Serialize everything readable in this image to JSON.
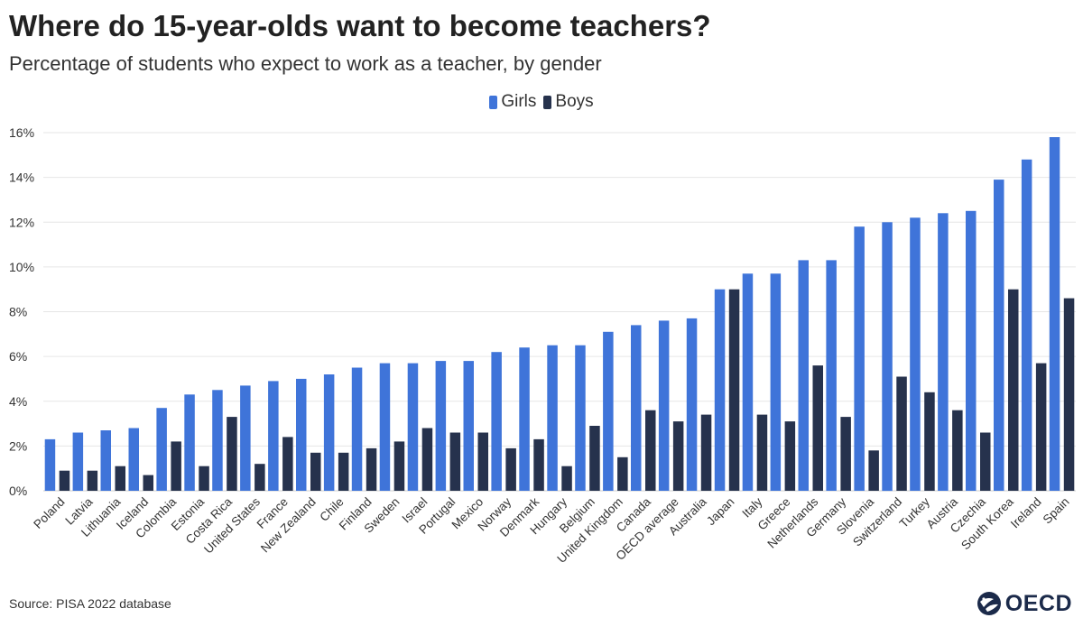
{
  "title": "Where do 15-year-olds want to become teachers?",
  "subtitle": "Percentage of students who expect to work as a teacher, by gender",
  "source": "Source: PISA 2022 database",
  "logo_text": "OECD",
  "colors": {
    "girls": "#3f74d9",
    "boys": "#26324d",
    "grid": "#e6e6e6"
  },
  "legend": [
    {
      "label": "Girls",
      "color": "#3f74d9"
    },
    {
      "label": "Boys",
      "color": "#26324d"
    }
  ],
  "chart_data": {
    "type": "bar",
    "title": "Where do 15-year-olds want to become teachers?",
    "subtitle": "Percentage of students who expect to work as a teacher, by gender",
    "ylim": [
      0,
      16
    ],
    "yticks": [
      0,
      2,
      4,
      6,
      8,
      10,
      12,
      14,
      16
    ],
    "ytick_labels": [
      "0%",
      "2%",
      "4%",
      "6%",
      "8%",
      "10%",
      "12%",
      "14%",
      "16%"
    ],
    "grid": true,
    "legend_position": "top-center",
    "categories": [
      "Poland",
      "Latvia",
      "Lithuania",
      "Iceland",
      "Colombia",
      "Estonia",
      "Costa Rica",
      "United States",
      "France",
      "New Zealand",
      "Chile",
      "Finland",
      "Sweden",
      "Israel",
      "Portugal",
      "Mexico",
      "Norway",
      "Denmark",
      "Hungary",
      "Belgium",
      "United Kingdom",
      "Canada",
      "OECD average",
      "Australia",
      "Japan",
      "Italy",
      "Greece",
      "Netherlands",
      "Germany",
      "Slovenia",
      "Switzerland",
      "Turkey",
      "Austria",
      "Czechia",
      "South Korea",
      "Ireland",
      "Spain"
    ],
    "series": [
      {
        "name": "Girls",
        "values": [
          2.3,
          2.6,
          2.7,
          2.8,
          3.7,
          4.3,
          4.5,
          4.7,
          4.9,
          5.0,
          5.2,
          5.5,
          5.7,
          5.7,
          5.8,
          5.8,
          6.2,
          6.4,
          6.5,
          6.5,
          7.1,
          7.4,
          7.6,
          7.7,
          9.0,
          9.7,
          9.7,
          10.3,
          10.3,
          11.8,
          12.0,
          12.2,
          12.4,
          12.5,
          13.9,
          14.8,
          15.8
        ]
      },
      {
        "name": "Boys",
        "values": [
          0.9,
          0.9,
          1.1,
          0.7,
          2.2,
          1.1,
          3.3,
          1.2,
          2.4,
          1.7,
          1.7,
          1.9,
          2.2,
          2.8,
          2.6,
          2.6,
          1.9,
          2.3,
          1.1,
          2.9,
          1.5,
          3.6,
          3.1,
          3.4,
          9.0,
          3.4,
          3.1,
          5.6,
          3.3,
          1.8,
          5.1,
          4.4,
          3.6,
          2.6,
          9.0,
          5.7,
          8.6
        ]
      }
    ]
  }
}
